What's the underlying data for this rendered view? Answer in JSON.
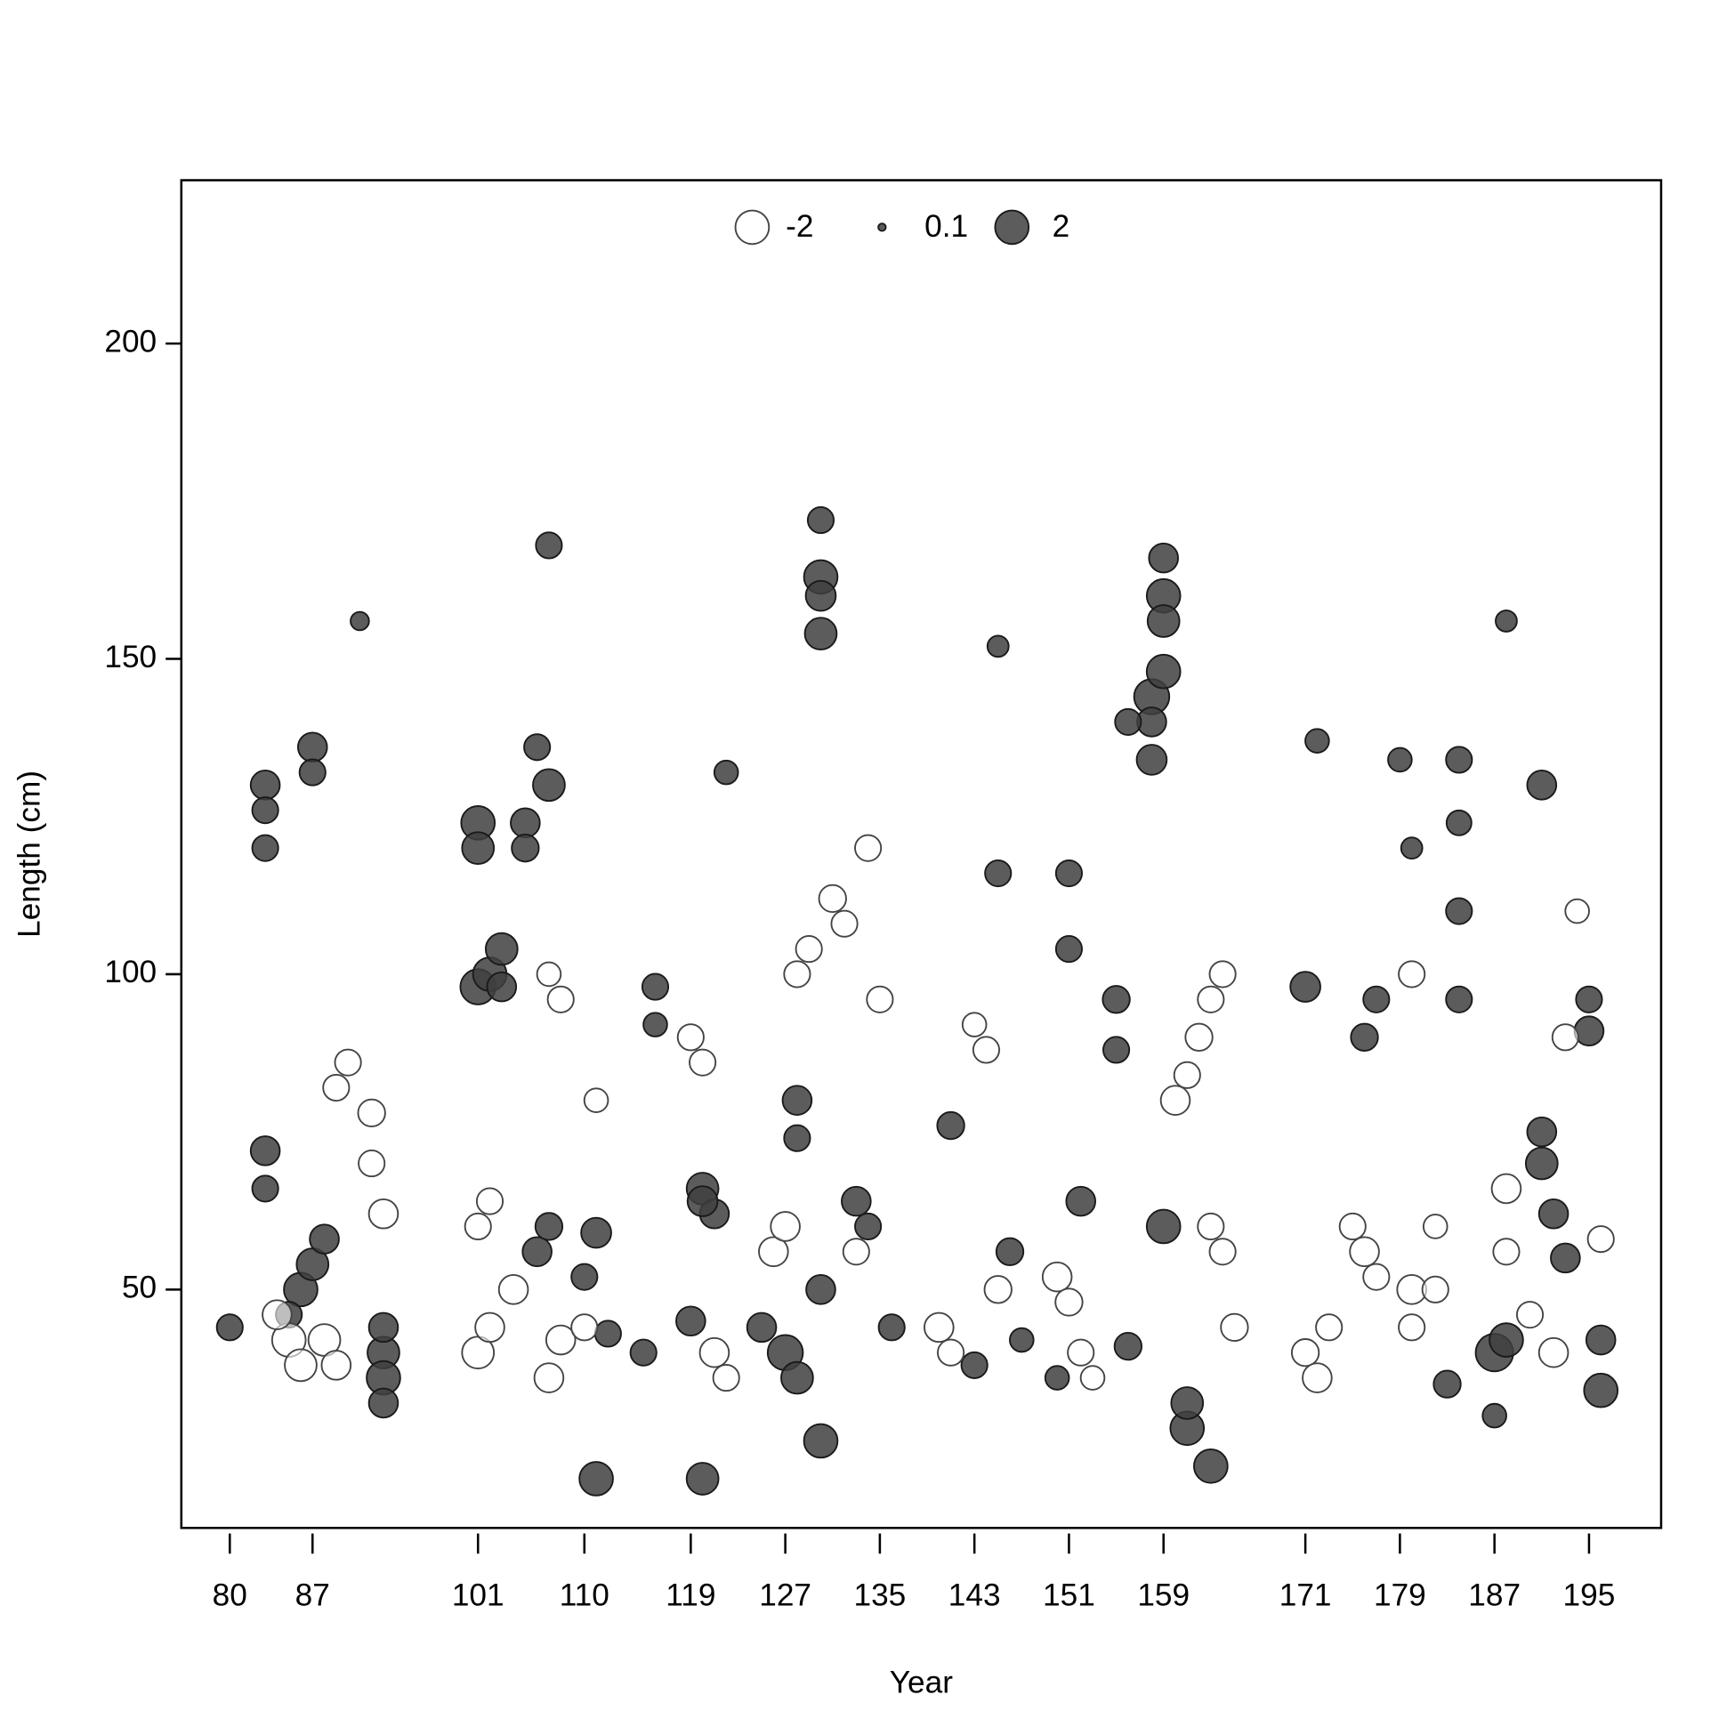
{
  "chart_data": {
    "type": "scatter",
    "xlabel": "Year",
    "ylabel": "Length (cm)",
    "xlim": [
      75.9,
      201.1
    ],
    "ylim": [
      12.2,
      225.9
    ],
    "xticks": [
      80,
      87,
      101,
      110,
      119,
      127,
      135,
      143,
      151,
      159,
      171,
      179,
      187,
      195
    ],
    "yticks": [
      50,
      100,
      150,
      200
    ],
    "legend_values": [
      -2,
      0.1,
      2
    ],
    "pos_color": "#404040",
    "neg_color": "#ffffff",
    "x": [
      101,
      101,
      101,
      102,
      103,
      103,
      107,
      111,
      120,
      130,
      130,
      130,
      130,
      130,
      163,
      159,
      159,
      159,
      158,
      159,
      158,
      156,
      158,
      159,
      161,
      161,
      187,
      188,
      191,
      196,
      196,
      188,
      91,
      93,
      93,
      93,
      93,
      86,
      87,
      88,
      85,
      83,
      83,
      83,
      83,
      83,
      87,
      87,
      80,
      105,
      105,
      107,
      106,
      106,
      107,
      111,
      110,
      112,
      115,
      116,
      116,
      120,
      121,
      120,
      119,
      122,
      125,
      127,
      128,
      128,
      128,
      130,
      133,
      134,
      136,
      141,
      143,
      145,
      145,
      146,
      147,
      151,
      151,
      152,
      150,
      155,
      155,
      156,
      171,
      172,
      179,
      180,
      184,
      184,
      184,
      184,
      183,
      187,
      191,
      191,
      192,
      193,
      195,
      195,
      177,
      176,
      85,
      86,
      84,
      88,
      89,
      89,
      90,
      92,
      92,
      93,
      101,
      102,
      101,
      102,
      104,
      107,
      108,
      108,
      107,
      110,
      111,
      119,
      120,
      121,
      122,
      126,
      127,
      128,
      129,
      131,
      132,
      134,
      135,
      133,
      140,
      141,
      143,
      144,
      145,
      150,
      151,
      152,
      153,
      160,
      161,
      162,
      163,
      164,
      164,
      163,
      165,
      171,
      172,
      173,
      175,
      176,
      177,
      180,
      180,
      180,
      182,
      182,
      188,
      188,
      190,
      192,
      193,
      194,
      196
    ],
    "y": [
      124,
      120,
      98,
      100,
      104,
      98,
      168,
      20,
      20,
      26,
      172,
      163,
      160,
      154,
      22,
      166,
      160,
      156,
      144,
      148,
      140,
      140,
      134,
      60,
      28,
      32,
      40,
      42,
      130,
      34,
      42,
      156,
      156,
      40,
      36,
      44,
      32,
      50,
      54,
      58,
      46,
      130,
      126,
      120,
      72,
      66,
      136,
      132,
      44,
      124,
      120,
      130,
      136,
      56,
      60,
      59,
      52,
      43,
      40,
      98,
      92,
      66,
      62,
      64,
      45,
      132,
      44,
      40,
      36,
      80,
      74,
      50,
      64,
      60,
      44,
      76,
      38,
      152,
      116,
      56,
      42,
      116,
      104,
      64,
      36,
      96,
      88,
      41,
      98,
      137,
      134,
      120,
      134,
      124,
      110,
      96,
      35,
      30,
      75,
      70,
      62,
      55,
      91,
      96,
      96,
      90,
      42,
      38,
      46,
      42,
      38,
      82,
      86,
      78,
      70,
      62,
      40,
      44,
      60,
      64,
      50,
      36,
      42,
      96,
      100,
      44,
      80,
      90,
      86,
      40,
      36,
      56,
      60,
      100,
      104,
      112,
      108,
      120,
      96,
      56,
      44,
      40,
      92,
      88,
      50,
      52,
      48,
      40,
      36,
      80,
      84,
      90,
      96,
      100,
      56,
      60,
      44,
      40,
      36,
      44,
      60,
      56,
      52,
      50,
      44,
      100,
      50,
      60,
      66,
      56,
      46,
      40,
      90,
      110,
      58
    ],
    "sizes": [
      2,
      1.8,
      2.2,
      2,
      1.8,
      1.5,
      1.2,
      2,
      1.8,
      2,
      1.2,
      2,
      1.6,
      1.8,
      2,
      1.5,
      2,
      1.8,
      2.2,
      2,
      1.5,
      1.2,
      1.6,
      2,
      2,
      1.8,
      2.5,
      2,
      1.5,
      2,
      1.5,
      0.8,
      0.6,
      1.8,
      2,
      1.5,
      1.5,
      2,
      1.8,
      1.5,
      1.2,
      1.5,
      1.2,
      1.2,
      1.5,
      1.2,
      1.5,
      1.2,
      1.2,
      1.5,
      1.3,
      1.8,
      1.2,
      1.5,
      1.3,
      1.6,
      1.2,
      1.2,
      1.2,
      1.2,
      1,
      1.8,
      1.5,
      1.6,
      1.5,
      1,
      1.5,
      2.2,
      1.8,
      1.5,
      1.2,
      1.5,
      1.5,
      1.2,
      1.2,
      1.3,
      1.2,
      0.8,
      1.2,
      1.3,
      1,
      1.2,
      1.2,
      1.5,
      1,
      1.3,
      1.2,
      1.3,
      1.6,
      1,
      1,
      0.8,
      1.2,
      1.1,
      1.2,
      1.2,
      1.3,
      1,
      1.5,
      1.8,
      1.5,
      1.5,
      1.5,
      1.2,
      1.2,
      1.3,
      -2,
      -1.8,
      -1.5,
      -1.8,
      -1.5,
      -1.2,
      -1.2,
      -1.3,
      -1.2,
      -1.5,
      -1.8,
      -1.5,
      -1.2,
      -1.2,
      -1.5,
      -1.5,
      -1.5,
      -1.2,
      -1,
      -1.2,
      -1,
      -1.2,
      -1.2,
      -1.5,
      -1.2,
      -1.5,
      -1.5,
      -1.2,
      -1.2,
      -1.3,
      -1.2,
      -1.2,
      -1.2,
      -1.2,
      -1.5,
      -1.2,
      -1,
      -1.2,
      -1.3,
      -1.5,
      -1.3,
      -1.2,
      -1,
      -1.5,
      -1.2,
      -1.3,
      -1.2,
      -1.2,
      -1.2,
      -1.2,
      -1.3,
      -1.3,
      -1.5,
      -1.2,
      -1.2,
      -1.5,
      -1.2,
      -1.5,
      -1.2,
      -1.2,
      -1.2,
      -1,
      -1.5,
      -1.2,
      -1.2,
      -1.5,
      -1.2,
      -1,
      -1.2
    ]
  }
}
